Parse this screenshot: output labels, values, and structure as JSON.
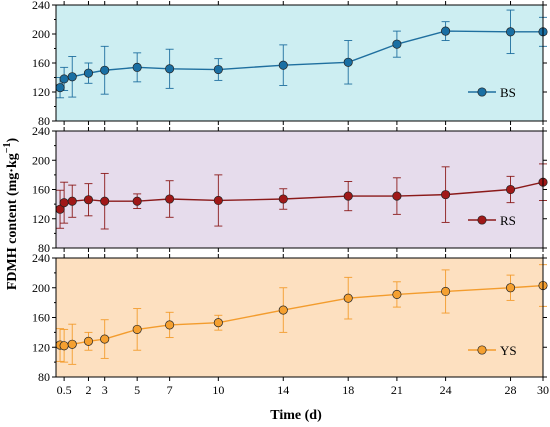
{
  "chart_data": {
    "type": "line",
    "ylabel": "FDMH content (mg·kg",
    "ylabel_sup": "−1",
    "ylabel_close": ")",
    "xlabel": "Time (d)",
    "xlim": [
      0,
      30
    ],
    "ylim": [
      80,
      240
    ],
    "x_ticks": [
      0.5,
      2,
      3,
      5,
      7,
      10,
      14,
      18,
      21,
      24,
      28,
      30
    ],
    "x_tick_labels": [
      "0.5",
      "2",
      "3",
      "5",
      "7",
      "10",
      "14",
      "18",
      "21",
      "24",
      "28",
      "30"
    ],
    "y_ticks": [
      80,
      120,
      160,
      200,
      240
    ],
    "x": [
      0.25,
      0.5,
      1,
      2,
      3,
      5,
      7,
      10,
      14,
      18,
      21,
      24,
      28,
      30
    ],
    "series": [
      {
        "name": "BS",
        "color": "#1f6f9f",
        "marker_color": "#1a6fa3",
        "bg": "#cdeef2",
        "values": [
          126,
          138,
          141,
          146,
          150,
          154,
          152,
          151,
          157,
          161,
          186,
          204,
          203,
          203
        ],
        "errors": [
          14,
          16,
          28,
          14,
          33,
          20,
          27,
          15,
          28,
          30,
          18,
          13,
          30,
          20
        ]
      },
      {
        "name": "RS",
        "color": "#8b1a1a",
        "marker_color": "#a01818",
        "bg": "#e6dcec",
        "values": [
          133,
          142,
          144,
          146,
          144,
          144,
          147,
          145,
          147,
          151,
          151,
          153,
          160,
          170
        ],
        "errors": [
          26,
          28,
          22,
          22,
          38,
          10,
          25,
          35,
          14,
          20,
          25,
          38,
          18,
          25
        ]
      },
      {
        "name": "YS",
        "color": "#f39c2d",
        "marker_color": "#f5a030",
        "bg": "#fde0c0",
        "values": [
          123,
          122,
          124,
          128,
          131,
          144,
          150,
          153,
          170,
          186,
          191,
          195,
          200,
          203
        ],
        "errors": [
          22,
          22,
          27,
          12,
          26,
          28,
          17,
          10,
          30,
          28,
          17,
          29,
          17,
          28
        ]
      }
    ]
  }
}
